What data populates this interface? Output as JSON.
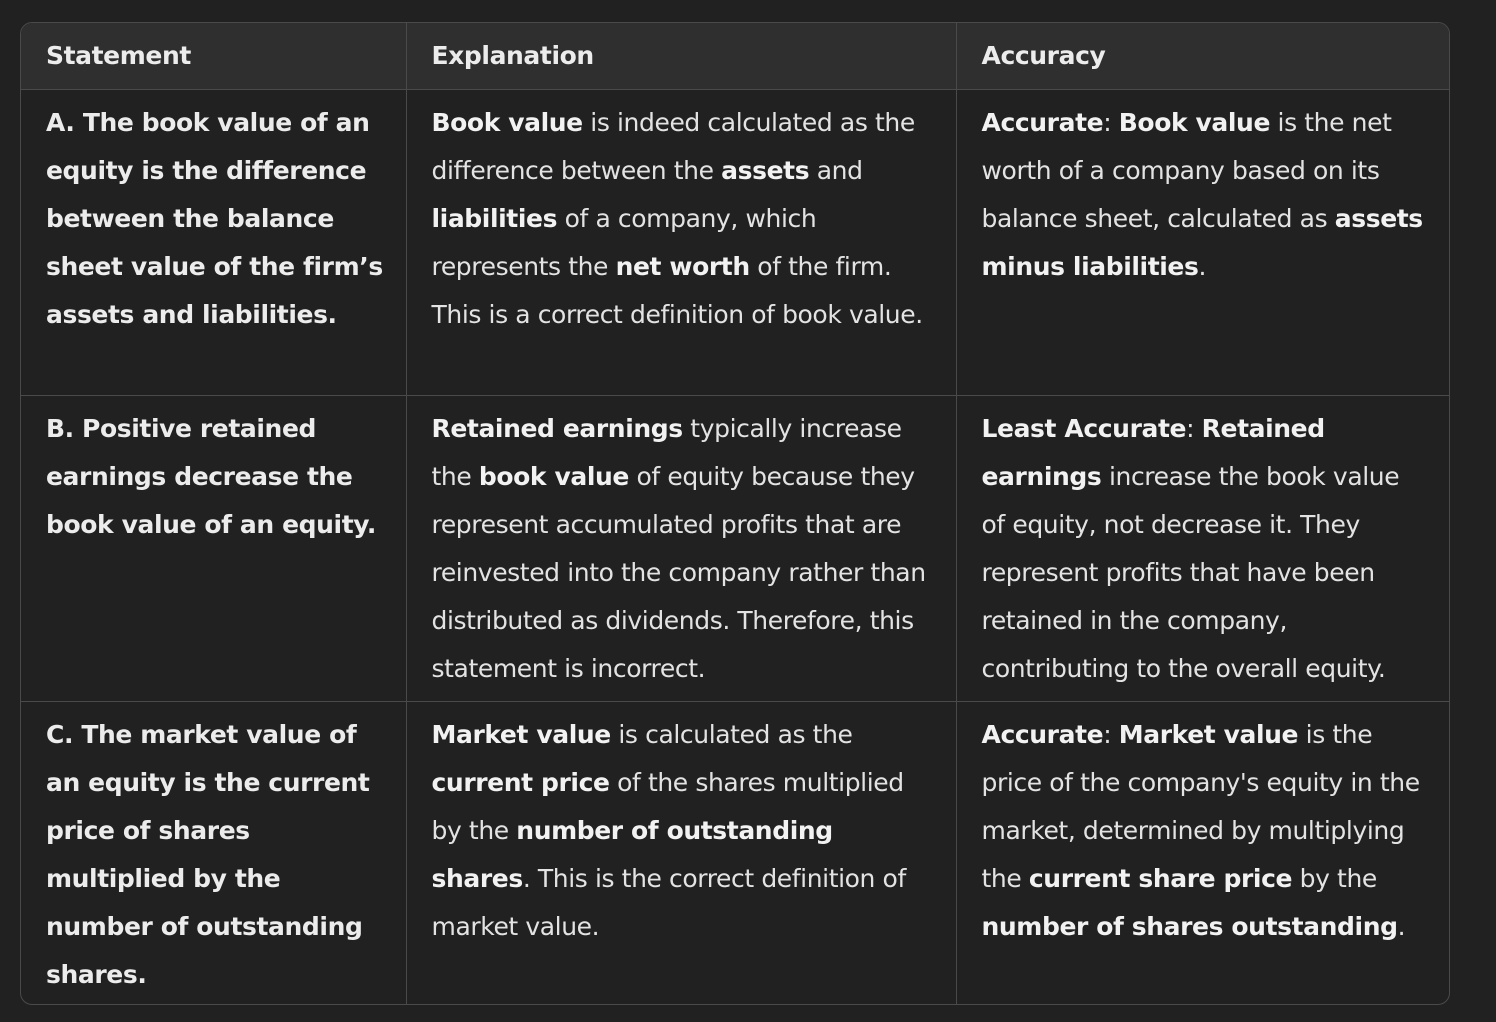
{
  "table": {
    "headers": [
      "Statement",
      "Explanation",
      "Accuracy"
    ],
    "rows": [
      {
        "statement": "A. The book value of an equity is the difference between the balance sheet value of the firm’s assets and liabilities.",
        "explanation": [
          {
            "t": "Book value",
            "b": true
          },
          {
            "t": " is indeed calculated as the difference between the "
          },
          {
            "t": "assets",
            "b": true
          },
          {
            "t": " and "
          },
          {
            "t": "liabilities",
            "b": true
          },
          {
            "t": " of a company, which represents the "
          },
          {
            "t": "net worth",
            "b": true
          },
          {
            "t": " of the firm. This is a correct definition of book value."
          }
        ],
        "accuracy": [
          {
            "t": "Accurate",
            "b": true
          },
          {
            "t": ": "
          },
          {
            "t": "Book value",
            "b": true
          },
          {
            "t": " is the net worth of a company based on its balance sheet, calculated as "
          },
          {
            "t": "assets minus liabilities",
            "b": true
          },
          {
            "t": "."
          }
        ]
      },
      {
        "statement": "B. Positive retained earnings decrease the book value of an equity.",
        "explanation": [
          {
            "t": "Retained earnings",
            "b": true
          },
          {
            "t": " typically increase the "
          },
          {
            "t": "book value",
            "b": true
          },
          {
            "t": " of equity because they represent accumulated profits that are reinvested into the company rather than distributed as dividends. Therefore, this statement is incorrect."
          }
        ],
        "accuracy": [
          {
            "t": "Least Accurate",
            "b": true
          },
          {
            "t": ": "
          },
          {
            "t": "Retained earnings",
            "b": true
          },
          {
            "t": " increase the book value of equity, not decrease it. They represent profits that have been retained in the company, contributing to the overall equity."
          }
        ]
      },
      {
        "statement": "C. The market value of an equity is the current price of shares multiplied by the number of outstanding shares.",
        "explanation": [
          {
            "t": "Market value",
            "b": true
          },
          {
            "t": " is calculated as the "
          },
          {
            "t": "current price",
            "b": true
          },
          {
            "t": " of the shares multiplied by the "
          },
          {
            "t": "number of outstanding shares",
            "b": true
          },
          {
            "t": ". This is the correct definition of market value."
          }
        ],
        "accuracy": [
          {
            "t": "Accurate",
            "b": true
          },
          {
            "t": ": "
          },
          {
            "t": "Market value",
            "b": true
          },
          {
            "t": " is the price of the company's equity in the market, determined by multiplying the "
          },
          {
            "t": "current share price",
            "b": true
          },
          {
            "t": " by the "
          },
          {
            "t": "number of shares outstanding",
            "b": true
          },
          {
            "t": "."
          }
        ]
      }
    ]
  }
}
